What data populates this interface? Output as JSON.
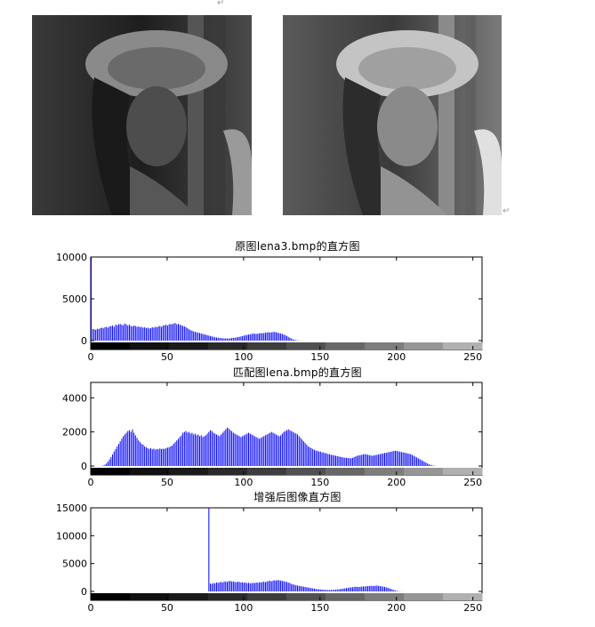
{
  "marks": {
    "top_mark": "↵",
    "right_mark": "↵"
  },
  "images": {
    "left_alt": "",
    "right_alt": ""
  },
  "chart_data": [
    {
      "type": "bar",
      "title": "原图lena3.bmp的直方图",
      "xlabel": "",
      "ylabel": "",
      "xlim": [
        0,
        255
      ],
      "ylim": [
        0,
        10000
      ],
      "xticks": [
        "0",
        "50",
        "100",
        "150",
        "200",
        "250"
      ],
      "yticks": [
        "0",
        "5000",
        "10000"
      ],
      "color": "#0000ff",
      "grid": false,
      "x_start": 0,
      "values": [
        10000,
        1400,
        1350,
        1300,
        1420,
        1380,
        1500,
        1550,
        1480,
        1600,
        1650,
        1550,
        1700,
        1750,
        1800,
        1650,
        1900,
        1850,
        1950,
        2000,
        1900,
        1850,
        2050,
        1950,
        1800,
        1900,
        1750,
        1700,
        1800,
        1750,
        1650,
        1700,
        1600,
        1650,
        1550,
        1600,
        1500,
        1550,
        1450,
        1500,
        1600,
        1550,
        1650,
        1600,
        1700,
        1750,
        1650,
        1800,
        1850,
        1900,
        1800,
        1950,
        2000,
        1950,
        2050,
        2100,
        1950,
        2000,
        1900,
        1850,
        1750,
        1700,
        1600,
        1500,
        1350,
        1250,
        1200,
        1100,
        1050,
        1000,
        950,
        900,
        850,
        800,
        750,
        700,
        650,
        600,
        550,
        500,
        450,
        400,
        380,
        350,
        330,
        300,
        280,
        270,
        260,
        250,
        260,
        280,
        300,
        320,
        350,
        380,
        420,
        450,
        500,
        550,
        600,
        650,
        700,
        720,
        750,
        800,
        850,
        820,
        800,
        830,
        860,
        900,
        880,
        920,
        950,
        980,
        1000,
        960,
        990,
        1020,
        1050,
        1000,
        950,
        900,
        850,
        800,
        720,
        650,
        560,
        450,
        350,
        250,
        150,
        100,
        60,
        30,
        20,
        10,
        0,
        0,
        0,
        0,
        0,
        0,
        0,
        0,
        0,
        0,
        0,
        0,
        0,
        0,
        0,
        0,
        0,
        0,
        0,
        0,
        0,
        0,
        0,
        0,
        0,
        0,
        0,
        0,
        0,
        0,
        0,
        0,
        0,
        0,
        0,
        0,
        0,
        0,
        0,
        0,
        0,
        0,
        0,
        0,
        0,
        0,
        0,
        0,
        0,
        0,
        0,
        0,
        0,
        0,
        0,
        0,
        0,
        0,
        0,
        0,
        0,
        0,
        0,
        0,
        0,
        0,
        0,
        0,
        0,
        0,
        0,
        0,
        0,
        0,
        0,
        0,
        0,
        0,
        0,
        0,
        0,
        0,
        0,
        0,
        0,
        0,
        0,
        0,
        0,
        0,
        0,
        0,
        0,
        0,
        0,
        0,
        0,
        0,
        0,
        0,
        0,
        0,
        0,
        0,
        0,
        0,
        0,
        0,
        0,
        0,
        0,
        0,
        0,
        0,
        0,
        0,
        0,
        0,
        0,
        0,
        0,
        0,
        0,
        0,
        0
      ]
    },
    {
      "type": "bar",
      "title": "匹配图lena.bmp的直方图",
      "xlabel": "",
      "ylabel": "",
      "xlim": [
        0,
        255
      ],
      "ylim": [
        0,
        4900
      ],
      "xticks": [
        "0",
        "50",
        "100",
        "150",
        "200",
        "250"
      ],
      "yticks": [
        "0",
        "2000",
        "4000"
      ],
      "color": "#0000ff",
      "grid": false,
      "x_start": 0,
      "values": [
        0,
        0,
        0,
        0,
        0,
        0,
        0,
        10,
        30,
        80,
        150,
        250,
        380,
        520,
        680,
        850,
        1000,
        1150,
        1300,
        1450,
        1600,
        1750,
        1850,
        1950,
        2050,
        2100,
        2000,
        2150,
        1950,
        1800,
        1650,
        1500,
        1400,
        1300,
        1250,
        1150,
        1100,
        1050,
        1000,
        1050,
        980,
        1020,
        960,
        1000,
        980,
        1030,
        990,
        1020,
        1000,
        1050,
        1080,
        1100,
        1150,
        1200,
        1300,
        1400,
        1500,
        1600,
        1700,
        1800,
        1950,
        2000,
        2050,
        1950,
        2000,
        1900,
        1950,
        1850,
        1900,
        1800,
        1850,
        1750,
        1800,
        1700,
        1750,
        1800,
        1900,
        2000,
        2100,
        2050,
        1950,
        1900,
        1850,
        1800,
        1750,
        1850,
        1950,
        2050,
        2150,
        2250,
        2200,
        2100,
        2050,
        1950,
        1900,
        1850,
        1800,
        1750,
        1700,
        1750,
        1800,
        1850,
        1900,
        1950,
        1900,
        1850,
        1800,
        1750,
        1700,
        1650,
        1600,
        1650,
        1700,
        1750,
        1800,
        1850,
        1900,
        1950,
        2000,
        1950,
        1900,
        1850,
        1800,
        1750,
        1800,
        1900,
        2000,
        2050,
        2100,
        2150,
        2100,
        2050,
        2000,
        1950,
        1900,
        1850,
        1750,
        1650,
        1550,
        1450,
        1350,
        1250,
        1150,
        1100,
        1050,
        1000,
        950,
        900,
        900,
        850,
        850,
        800,
        800,
        750,
        750,
        700,
        700,
        650,
        650,
        620,
        600,
        580,
        560,
        540,
        520,
        500,
        490,
        480,
        470,
        460,
        450,
        480,
        520,
        560,
        600,
        620,
        640,
        660,
        680,
        700,
        680,
        660,
        640,
        620,
        600,
        620,
        640,
        660,
        680,
        700,
        720,
        740,
        760,
        780,
        800,
        820,
        840,
        860,
        880,
        900,
        880,
        860,
        840,
        820,
        800,
        780,
        760,
        740,
        720,
        700,
        650,
        600,
        550,
        500,
        450,
        400,
        350,
        300,
        250,
        200,
        150,
        100,
        70,
        40,
        20,
        10,
        5,
        0,
        0,
        0,
        0,
        0,
        0,
        0,
        0,
        0,
        0,
        0,
        0,
        0,
        0,
        0,
        0,
        0,
        0,
        0,
        0,
        0,
        0,
        0,
        0,
        0,
        0,
        0,
        0,
        0,
        0,
        0,
        0,
        0,
        0,
        0,
        0
      ]
    },
    {
      "type": "bar",
      "title": "增强后图像直方图",
      "xlabel": "",
      "ylabel": "",
      "xlim": [
        0,
        255
      ],
      "ylim": [
        0,
        15000
      ],
      "xticks": [
        "0",
        "50",
        "100",
        "150",
        "200",
        "250"
      ],
      "yticks": [
        "0",
        "5000",
        "10000",
        "15000"
      ],
      "color": "#0000ff",
      "grid": false,
      "x_start": 0,
      "values": [
        0,
        0,
        0,
        0,
        0,
        0,
        0,
        0,
        0,
        0,
        0,
        0,
        0,
        0,
        0,
        0,
        0,
        0,
        0,
        0,
        0,
        0,
        0,
        0,
        0,
        0,
        0,
        0,
        0,
        0,
        0,
        0,
        0,
        0,
        0,
        0,
        0,
        0,
        0,
        0,
        0,
        0,
        0,
        0,
        0,
        0,
        0,
        0,
        0,
        0,
        0,
        0,
        0,
        0,
        0,
        0,
        0,
        0,
        0,
        0,
        0,
        0,
        0,
        0,
        0,
        0,
        0,
        0,
        0,
        0,
        0,
        0,
        0,
        0,
        0,
        0,
        0,
        15000,
        1400,
        1350,
        1500,
        1450,
        1600,
        1550,
        1650,
        1700,
        1600,
        1750,
        1800,
        1700,
        1850,
        1900,
        1750,
        1800,
        1700,
        1650,
        1750,
        1700,
        1600,
        1650,
        1550,
        1600,
        1500,
        1550,
        1450,
        1500,
        1550,
        1500,
        1600,
        1550,
        1650,
        1600,
        1700,
        1750,
        1650,
        1800,
        1850,
        1900,
        1800,
        1950,
        2000,
        1950,
        2050,
        2000,
        1950,
        1900,
        1850,
        1750,
        1700,
        1600,
        1500,
        1350,
        1250,
        1200,
        1100,
        1050,
        1000,
        950,
        900,
        850,
        800,
        750,
        700,
        650,
        600,
        550,
        500,
        450,
        400,
        380,
        350,
        330,
        300,
        280,
        270,
        260,
        250,
        260,
        280,
        300,
        320,
        350,
        380,
        420,
        450,
        500,
        550,
        600,
        650,
        700,
        720,
        750,
        800,
        850,
        820,
        800,
        830,
        860,
        900,
        880,
        920,
        950,
        980,
        1000,
        960,
        990,
        1020,
        1050,
        1000,
        950,
        900,
        850,
        800,
        720,
        650,
        560,
        450,
        350,
        250,
        150,
        100,
        60,
        30,
        20,
        10,
        0,
        0,
        0,
        0,
        0,
        0,
        0,
        0,
        0,
        0,
        0,
        0,
        0,
        0,
        0,
        0,
        0,
        0,
        0,
        0,
        0,
        0,
        0,
        0,
        0,
        0,
        0,
        0,
        0,
        0,
        0,
        0,
        0,
        0,
        0,
        0,
        0,
        0,
        0,
        0,
        0,
        0,
        0,
        0,
        0,
        0,
        0,
        0,
        0,
        0,
        0,
        0,
        0,
        0,
        0,
        0,
        0,
        0
      ]
    }
  ]
}
